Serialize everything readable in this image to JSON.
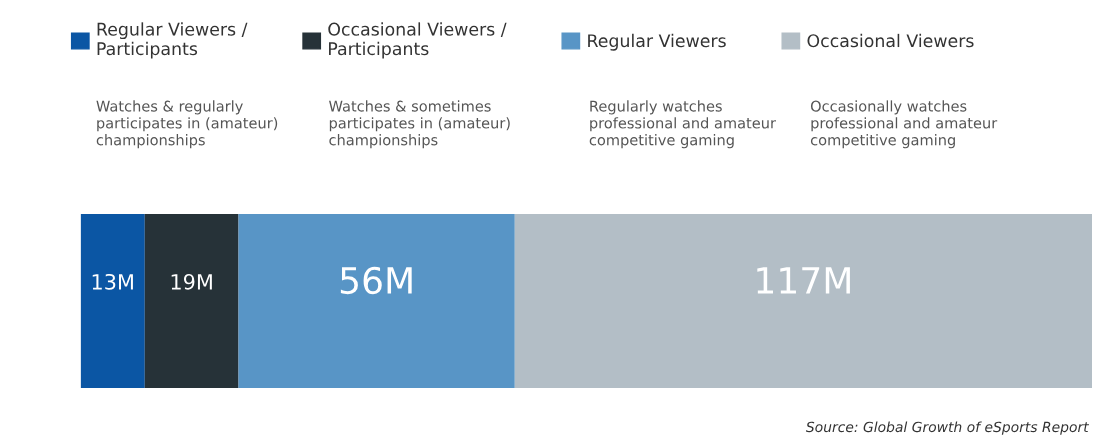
{
  "chart_data": {
    "type": "bar",
    "orientation": "horizontal",
    "stacked": true,
    "categories": [
      null
    ],
    "series": [
      {
        "name": "Regular Viewers /\nParticipants",
        "color": "#0b56a4",
        "values": [
          13
        ],
        "value_labels": [
          "13M"
        ]
      },
      {
        "name": "Occasional Viewers /\nParticipants",
        "color": "#263238",
        "values": [
          19
        ],
        "value_labels": [
          "19M"
        ]
      },
      {
        "name": "Regular Viewers",
        "color": "#5895c6",
        "values": [
          56
        ],
        "value_labels": [
          "56M"
        ]
      },
      {
        "name": "Occasional Viewers",
        "color": "#b3bec6",
        "values": [
          117
        ],
        "value_labels": [
          "117M"
        ]
      }
    ],
    "annotations": [
      "Watches & regularly\nparticipates in (amateur)\nchampionships",
      "Watches & sometimes\nparticipates in (amateur)\nchampionships",
      "Regularly watches\nprofessional and amateur\ncompetitive gaming",
      "Occasionally watches\nprofessional and amateur\ncompetitive gaming",
      "Source: Global Growth of eSports Report"
    ],
    "legend": "top",
    "tick_labels": false,
    "grid": false
  }
}
